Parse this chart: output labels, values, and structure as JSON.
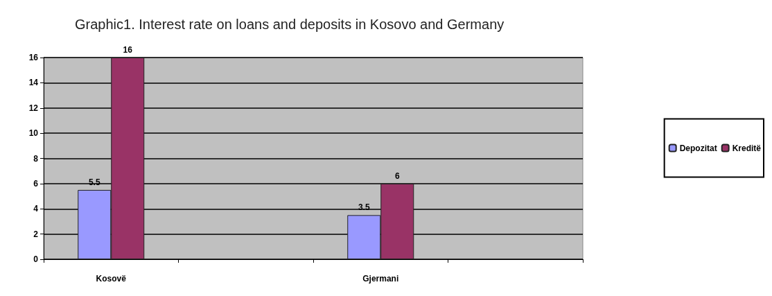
{
  "chart_data": {
    "type": "bar",
    "title": "Graphic1. Interest rate on loans and deposits in Kosovo and Germany",
    "categories": [
      "Kosovë",
      null,
      "Gjermani",
      null
    ],
    "series": [
      {
        "name": "Depozitat",
        "color": "#9999ff",
        "values": [
          5.5,
          null,
          3.5,
          null
        ]
      },
      {
        "name": "Kreditë",
        "color": "#993366",
        "values": [
          16,
          null,
          6,
          null
        ]
      }
    ],
    "ylim": [
      0,
      16
    ],
    "yticks": [
      0,
      2,
      4,
      6,
      8,
      10,
      12,
      14,
      16
    ],
    "grid": "y",
    "legend": "right",
    "data_labels": true
  }
}
